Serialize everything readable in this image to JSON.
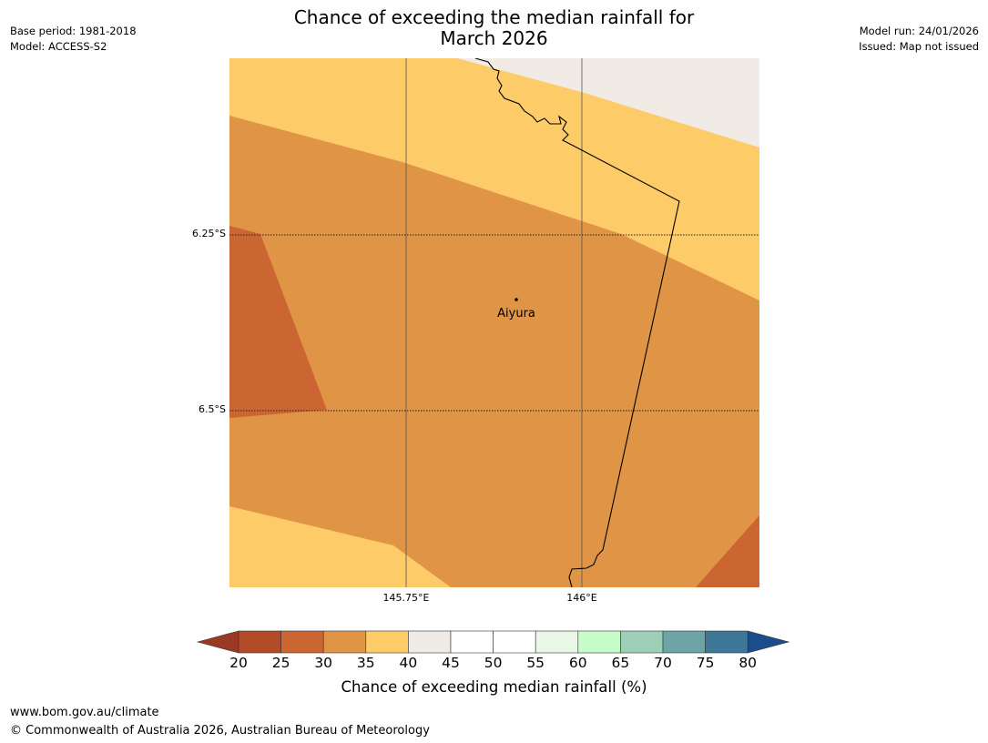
{
  "title": {
    "line1": "Chance of exceeding the median rainfall for",
    "line2": "March 2026"
  },
  "meta_left": {
    "base_period": "Base period: 1981-2018",
    "model": "Model: ACCESS-S2"
  },
  "meta_right": {
    "model_run": "Model run: 24/01/2026",
    "issued": "Issued: Map not issued"
  },
  "map": {
    "lat_labels": [
      "6.25°S",
      "6.5°S"
    ],
    "lon_labels": [
      "145.75°E",
      "146°E"
    ],
    "place": {
      "name": "Aiyura"
    },
    "colors": {
      "c20_25": "#b34a28",
      "c25_30": "#cb6532",
      "c30_35": "#e09446",
      "c35_40": "#fecb69",
      "c40_45": "#f1ebe6",
      "land_border": "#000000"
    }
  },
  "colorbar": {
    "ticks": [
      "20",
      "25",
      "30",
      "35",
      "40",
      "45",
      "50",
      "55",
      "60",
      "65",
      "70",
      "75",
      "80"
    ],
    "colors": [
      "#b34a28",
      "#cb6532",
      "#e09446",
      "#fecb69",
      "#f1ebe6",
      "#ffffff",
      "#ffffff",
      "#e9f7e7",
      "#c7fcc8",
      "#9dcfb6",
      "#6da4a5",
      "#3f7799"
    ],
    "under_color": "#9a3a23",
    "over_color": "#1a4e8a",
    "label": "Chance of exceeding median rainfall (%)"
  },
  "footer": {
    "url": "www.bom.gov.au/climate",
    "copyright": "© Commonwealth of Australia 2026, Australian Bureau of Meteorology"
  }
}
